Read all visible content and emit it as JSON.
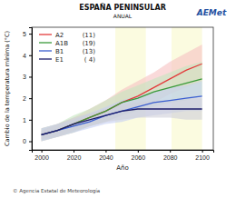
{
  "chart_data": {
    "type": "line",
    "title": "ESPAÑA PENINSULAR",
    "subtitle": "ANUAL",
    "x_label": "Año",
    "y_label": "Cambio de la temperatura mínima (°C)",
    "source": "© Agencia Estatal de Meteorología",
    "logo": "AEMet",
    "x": [
      2000,
      2010,
      2020,
      2030,
      2040,
      2050,
      2060,
      2070,
      2080,
      2090,
      2100
    ],
    "xlim": [
      1994,
      2107
    ],
    "ylim": [
      -0.4,
      5.3
    ],
    "xticks": [
      2000,
      2020,
      2040,
      2060,
      2080,
      2100
    ],
    "yticks": [
      0,
      1,
      2,
      3,
      4,
      5
    ],
    "grid": false,
    "legend": "top-left",
    "periods": [
      {
        "start": 2046,
        "end": 2065,
        "color": "#fbfbe0"
      },
      {
        "start": 2081,
        "end": 2100,
        "color": "#fbfbe0"
      }
    ],
    "series": [
      {
        "name": "A2",
        "models": {
          "value": 11,
          "label": "(11)"
        },
        "color": "#e33b3b",
        "band_color": "#f6c2c2",
        "values": [
          0.3,
          0.5,
          0.8,
          1.1,
          1.4,
          1.8,
          2.1,
          2.5,
          2.9,
          3.3,
          3.6
        ],
        "lower": [
          0.0,
          0.2,
          0.4,
          0.7,
          0.9,
          1.2,
          1.5,
          1.8,
          2.2,
          2.5,
          2.8
        ],
        "upper": [
          0.6,
          0.8,
          1.1,
          1.5,
          1.9,
          2.4,
          2.8,
          3.2,
          3.7,
          4.1,
          4.5
        ]
      },
      {
        "name": "A1B",
        "models": {
          "value": 19,
          "label": "(19)"
        },
        "color": "#3a9a3a",
        "band_color": "#c4e6c0",
        "values": [
          0.3,
          0.5,
          0.8,
          1.1,
          1.4,
          1.8,
          2.0,
          2.3,
          2.5,
          2.7,
          2.9
        ],
        "lower": [
          0.0,
          0.2,
          0.4,
          0.7,
          0.9,
          1.2,
          1.4,
          1.6,
          1.8,
          1.9,
          2.1
        ],
        "upper": [
          0.6,
          0.8,
          1.2,
          1.5,
          1.9,
          2.3,
          2.6,
          2.9,
          3.2,
          3.5,
          3.7
        ]
      },
      {
        "name": "B1",
        "models": {
          "value": 13,
          "label": "(13)"
        },
        "color": "#3a5ed0",
        "band_color": "#c4cff2",
        "values": [
          0.3,
          0.5,
          0.7,
          0.9,
          1.2,
          1.4,
          1.6,
          1.8,
          1.9,
          2.0,
          2.1
        ],
        "lower": [
          0.0,
          0.2,
          0.4,
          0.6,
          0.8,
          0.9,
          1.1,
          1.2,
          1.3,
          1.4,
          1.4
        ],
        "upper": [
          0.6,
          0.8,
          1.0,
          1.3,
          1.6,
          1.9,
          2.1,
          2.3,
          2.5,
          2.6,
          2.8
        ]
      },
      {
        "name": "E1",
        "models": {
          "value": 4,
          "label": "( 4)"
        },
        "color": "#1c1c6a",
        "band_color": "#cfcfd8",
        "values": [
          0.3,
          0.5,
          0.8,
          1.0,
          1.2,
          1.4,
          1.5,
          1.5,
          1.5,
          1.5,
          1.5
        ],
        "lower": [
          0.1,
          0.2,
          0.5,
          0.7,
          0.9,
          1.0,
          1.1,
          1.1,
          1.1,
          1.0,
          1.0
        ],
        "upper": [
          0.5,
          0.8,
          1.1,
          1.3,
          1.5,
          1.7,
          1.8,
          1.9,
          1.9,
          2.0,
          2.0
        ]
      }
    ]
  }
}
